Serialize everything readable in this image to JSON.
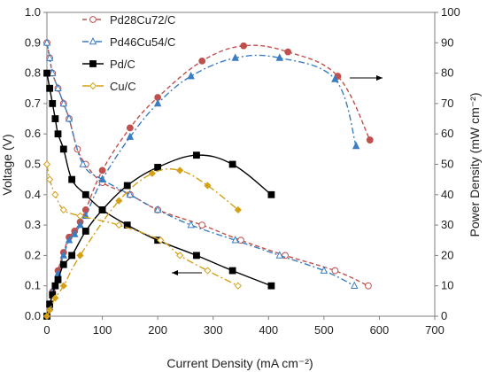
{
  "chart_data": {
    "type": "line",
    "xlabel": "Current Density (mA cm⁻²)",
    "ylabel_left": "Voltage (V)",
    "ylabel_right": "Power Density (mW cm⁻²)",
    "xlim": [
      0,
      700
    ],
    "xticks": [
      0,
      100,
      200,
      300,
      400,
      500,
      600,
      700
    ],
    "ylim_left": [
      0,
      1.0
    ],
    "yticks_left": [
      "0.0",
      "0.1",
      "0.2",
      "0.3",
      "0.4",
      "0.5",
      "0.6",
      "0.7",
      "0.8",
      "0.9",
      "1.0"
    ],
    "ylim_right": [
      0,
      100
    ],
    "yticks_right": [
      0,
      10,
      20,
      30,
      40,
      50,
      60,
      70,
      80,
      90,
      100
    ],
    "grid": false,
    "legend_position": "top-left",
    "series": [
      {
        "name": "Pd28Cu72/C",
        "color": "#c0504d",
        "dash": "5,3",
        "marker": "circle",
        "voltage": {
          "x": [
            0,
            5,
            10,
            20,
            30,
            40,
            55,
            70,
            100,
            150,
            200,
            280,
            350,
            430,
            520,
            580
          ],
          "y": [
            0.9,
            0.85,
            0.8,
            0.75,
            0.7,
            0.65,
            0.55,
            0.5,
            0.44,
            0.4,
            0.35,
            0.3,
            0.25,
            0.2,
            0.15,
            0.1
          ]
        },
        "power": {
          "x": [
            0,
            5,
            10,
            20,
            30,
            40,
            50,
            60,
            70,
            100,
            150,
            200,
            280,
            355,
            435,
            525,
            583
          ],
          "y": [
            0,
            3,
            8,
            15,
            21,
            26,
            28,
            31,
            35,
            48,
            62,
            72,
            84,
            89,
            87,
            79,
            58
          ]
        }
      },
      {
        "name": "Pd46Cu54/C",
        "color": "#3a7dc0",
        "dash": "7,3,2,3",
        "marker": "triangle",
        "voltage": {
          "x": [
            0,
            5,
            10,
            20,
            30,
            40,
            65,
            100,
            150,
            200,
            260,
            340,
            420,
            500,
            555
          ],
          "y": [
            0.9,
            0.85,
            0.8,
            0.75,
            0.7,
            0.65,
            0.5,
            0.45,
            0.4,
            0.35,
            0.3,
            0.25,
            0.2,
            0.15,
            0.1
          ]
        },
        "power": {
          "x": [
            0,
            5,
            10,
            20,
            30,
            40,
            50,
            60,
            70,
            100,
            150,
            200,
            260,
            340,
            420,
            520,
            558
          ],
          "y": [
            0,
            3,
            8,
            14,
            20,
            25,
            27,
            30,
            33,
            45,
            59,
            70,
            79,
            85,
            85,
            78,
            56
          ]
        }
      },
      {
        "name": "Pd/C",
        "color": "#000000",
        "dash": "",
        "marker": "square",
        "voltage": {
          "x": [
            0,
            5,
            10,
            15,
            20,
            30,
            45,
            70,
            100,
            145,
            200,
            270,
            335,
            405
          ],
          "y": [
            0.8,
            0.75,
            0.7,
            0.65,
            0.6,
            0.55,
            0.45,
            0.4,
            0.35,
            0.3,
            0.25,
            0.2,
            0.15,
            0.1
          ]
        },
        "power": {
          "x": [
            0,
            5,
            10,
            15,
            20,
            30,
            45,
            70,
            100,
            145,
            200,
            270,
            335,
            405
          ],
          "y": [
            0,
            4,
            7,
            10,
            12,
            17,
            20,
            28,
            35,
            43,
            49,
            53,
            50,
            40
          ]
        }
      },
      {
        "name": "Cu/C",
        "color": "#d4a017",
        "dash": "8,3,2,3",
        "marker": "diamond",
        "voltage": {
          "x": [
            0,
            5,
            15,
            30,
            60,
            130,
            205,
            240,
            290,
            345
          ],
          "y": [
            0.5,
            0.45,
            0.4,
            0.35,
            0.33,
            0.3,
            0.25,
            0.2,
            0.15,
            0.1
          ]
        },
        "power": {
          "x": [
            0,
            5,
            15,
            30,
            60,
            130,
            190,
            240,
            290,
            345
          ],
          "y": [
            0,
            2,
            6,
            10,
            20,
            38,
            47,
            48,
            43,
            35
          ]
        }
      }
    ]
  }
}
